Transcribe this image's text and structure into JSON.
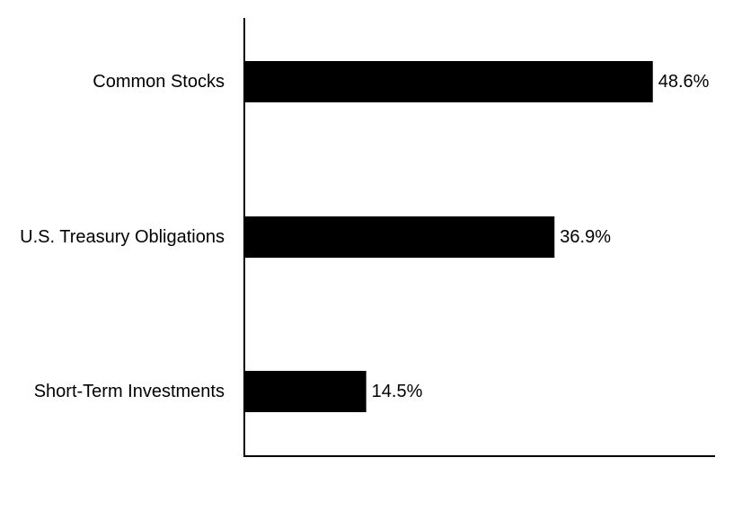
{
  "chart_data": {
    "type": "bar",
    "orientation": "horizontal",
    "categories": [
      "Common Stocks",
      "U.S. Treasury Obligations",
      "Short-Term Investments"
    ],
    "values": [
      48.6,
      36.9,
      14.5
    ],
    "value_labels": [
      "48.6%",
      "36.9%",
      "14.5%"
    ],
    "title": "",
    "xlabel": "",
    "ylabel": "",
    "xlim": [
      0,
      56
    ],
    "grid": false,
    "legend": "none",
    "bar_color": "#000000"
  }
}
